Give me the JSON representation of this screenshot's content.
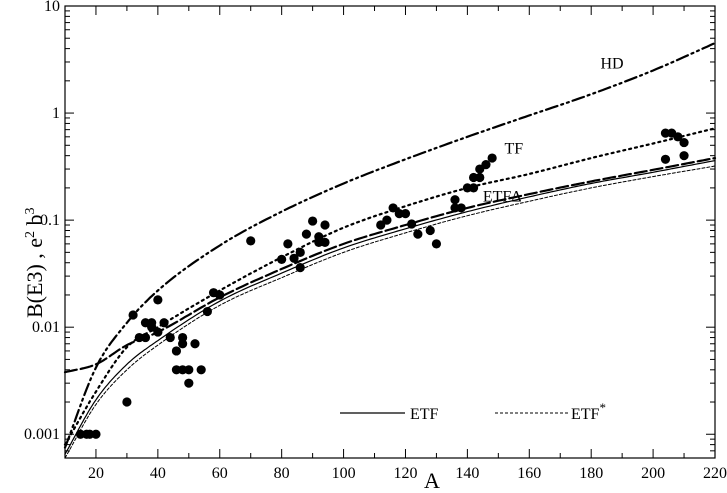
{
  "chart_data": {
    "type": "scatter",
    "title": "",
    "xlabel": "A",
    "ylabel": "B(E3) , e",
    "ylabel_sup_1": "2",
    "ylabel_mid": " b",
    "ylabel_sup_2": "3",
    "xlim": [
      10,
      220
    ],
    "ylim": [
      0.0006,
      10
    ],
    "yscale": "log",
    "grid": false,
    "x_ticks": [
      20,
      40,
      60,
      80,
      100,
      120,
      140,
      160,
      180,
      200,
      220
    ],
    "x_tick_labels": [
      "20",
      "40",
      "60",
      "80",
      "100",
      "120",
      "140",
      "160",
      "180",
      "200",
      "220"
    ],
    "y_ticks": [
      0.001,
      0.01,
      0.1,
      1,
      10
    ],
    "y_tick_labels": [
      "0.001",
      "0.01",
      "0.1",
      "1",
      "10"
    ],
    "points": {
      "x": [
        15,
        17,
        18,
        20,
        30,
        32,
        34,
        36,
        36,
        38,
        38,
        40,
        40,
        42,
        44,
        46,
        46,
        48,
        48,
        48,
        50,
        50,
        52,
        54,
        56,
        58,
        60,
        70,
        80,
        82,
        84,
        86,
        86,
        88,
        90,
        92,
        92,
        94,
        94,
        112,
        114,
        116,
        118,
        120,
        122,
        124,
        128,
        130,
        136,
        136,
        138,
        140,
        142,
        142,
        144,
        144,
        146,
        148,
        204,
        204,
        206,
        208,
        210,
        210
      ],
      "y": [
        0.001,
        0.001,
        0.001,
        0.001,
        0.002,
        0.013,
        0.008,
        0.008,
        0.011,
        0.011,
        0.01,
        0.018,
        0.009,
        0.011,
        0.008,
        0.006,
        0.004,
        0.008,
        0.007,
        0.004,
        0.004,
        0.003,
        0.007,
        0.004,
        0.014,
        0.021,
        0.02,
        0.064,
        0.043,
        0.06,
        0.044,
        0.036,
        0.05,
        0.074,
        0.098,
        0.07,
        0.062,
        0.09,
        0.062,
        0.09,
        0.1,
        0.13,
        0.115,
        0.115,
        0.092,
        0.074,
        0.08,
        0.06,
        0.13,
        0.155,
        0.13,
        0.2,
        0.2,
        0.25,
        0.25,
        0.3,
        0.33,
        0.38,
        0.37,
        0.65,
        0.65,
        0.6,
        0.4,
        0.53
      ]
    },
    "series": [
      {
        "id": "HD",
        "style": "dashdotdot",
        "width": 2.2,
        "x": [
          10,
          20,
          30,
          40,
          60,
          80,
          100,
          120,
          140,
          160,
          180,
          200,
          220
        ],
        "y": [
          0.00075,
          0.0042,
          0.011,
          0.022,
          0.058,
          0.12,
          0.22,
          0.37,
          0.6,
          0.95,
          1.5,
          2.5,
          4.5
        ]
      },
      {
        "id": "TF",
        "style": "dotted",
        "width": 2.2,
        "x": [
          10,
          20,
          30,
          40,
          60,
          80,
          100,
          120,
          140,
          160,
          180,
          200,
          220
        ],
        "y": [
          0.0008,
          0.0025,
          0.0065,
          0.01,
          0.022,
          0.045,
          0.085,
          0.135,
          0.2,
          0.27,
          0.38,
          0.52,
          0.72
        ]
      },
      {
        "id": "ETFΔ",
        "style": "dashed",
        "width": 2.2,
        "x": [
          10,
          20,
          30,
          40,
          60,
          80,
          100,
          120,
          140,
          160,
          180,
          200,
          220
        ],
        "y": [
          0.0038,
          0.0045,
          0.0068,
          0.009,
          0.019,
          0.035,
          0.06,
          0.09,
          0.13,
          0.175,
          0.23,
          0.295,
          0.38
        ]
      },
      {
        "id": "ETF",
        "style": "solid",
        "width": 1.2,
        "x": [
          10,
          20,
          30,
          40,
          60,
          80,
          100,
          120,
          140,
          160,
          180,
          200,
          220
        ],
        "y": [
          0.00065,
          0.0021,
          0.0045,
          0.0075,
          0.0175,
          0.032,
          0.055,
          0.083,
          0.12,
          0.165,
          0.22,
          0.28,
          0.36
        ]
      },
      {
        "id": "ETF*",
        "style": "thin-dashed",
        "width": 1.0,
        "x": [
          10,
          20,
          30,
          40,
          60,
          80,
          100,
          120,
          140,
          160,
          180,
          200,
          220
        ],
        "y": [
          0.0006,
          0.0019,
          0.004,
          0.0068,
          0.016,
          0.029,
          0.05,
          0.076,
          0.11,
          0.15,
          0.2,
          0.255,
          0.32
        ]
      }
    ],
    "curve_labels": [
      {
        "text": "HD",
        "x": 183,
        "y": 2.6
      },
      {
        "text": "TF",
        "x": 152,
        "y": 0.42
      },
      {
        "text": "ETFΔ",
        "x": 145,
        "y": 0.15
      }
    ],
    "legend": {
      "placement": "bottom-center",
      "entries": [
        {
          "label": "ETF",
          "style": "solid"
        },
        {
          "label": "ETF",
          "sup": "*",
          "style": "thin-dashed"
        }
      ]
    },
    "colors": {
      "line": "#000000",
      "marker": "#000000",
      "background": "#ffffff"
    }
  }
}
